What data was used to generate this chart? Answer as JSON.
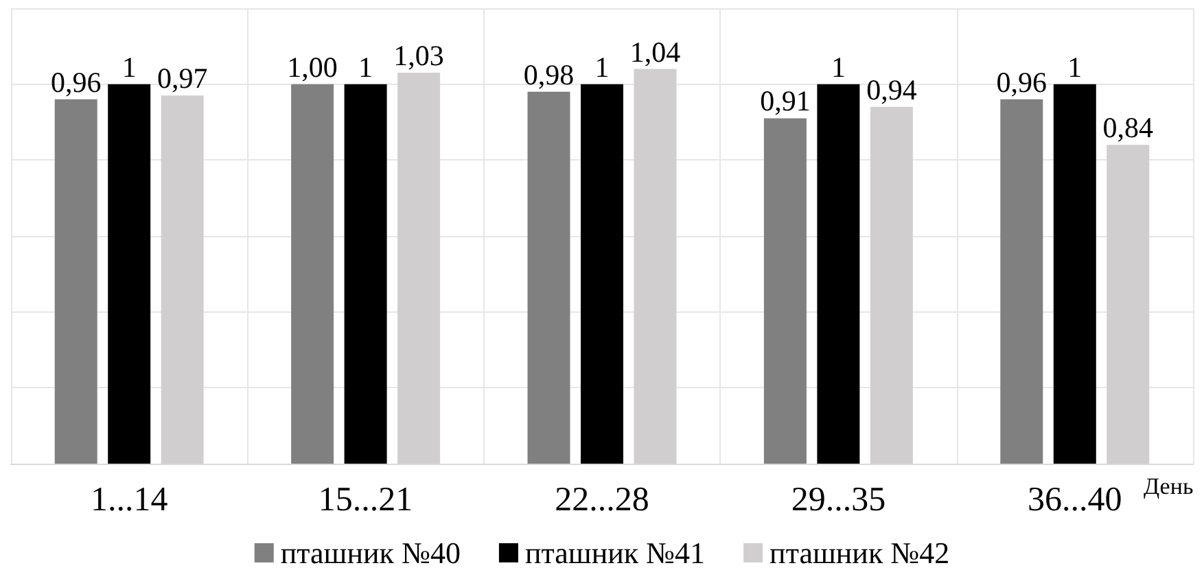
{
  "chart_data": {
    "type": "bar",
    "xlabel": "День",
    "categories": [
      "1...14",
      "15...21",
      "22...28",
      "29...35",
      "36...40"
    ],
    "series": [
      {
        "name": "пташник №40",
        "color": "#808080",
        "values": [
          0.96,
          1.0,
          0.98,
          0.91,
          0.96
        ],
        "value_labels": [
          "0,96",
          "1,00",
          "0,98",
          "0,91",
          "0,96"
        ]
      },
      {
        "name": "пташник №41",
        "color": "#000000",
        "values": [
          1,
          1,
          1,
          1,
          1
        ],
        "value_labels": [
          "1",
          "1",
          "1",
          "1",
          "1"
        ]
      },
      {
        "name": "пташник №42",
        "color": "#d0cece",
        "values": [
          0.97,
          1.03,
          1.04,
          0.94,
          0.84
        ],
        "value_labels": [
          "0,97",
          "1,03",
          "1,04",
          "0,94",
          "0,84"
        ]
      }
    ],
    "ylim": [
      0,
      1.2
    ],
    "yticks": [
      {
        "value": 0,
        "label": null
      },
      {
        "value": 0.2,
        "label": null
      },
      {
        "value": 0.4,
        "label": null
      },
      {
        "value": 0.6,
        "label": null
      },
      {
        "value": 0.8,
        "label": null
      },
      {
        "value": 1,
        "label": null
      },
      {
        "value": 1.2,
        "label": null
      }
    ],
    "grid": true,
    "legend": "bottom",
    "tick_labels": "x"
  }
}
